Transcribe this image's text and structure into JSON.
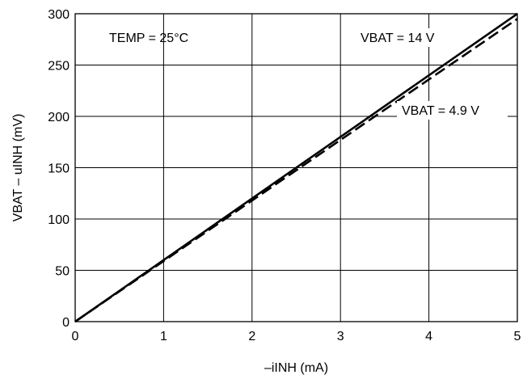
{
  "chart_data": {
    "type": "line",
    "title": "",
    "xlabel": "–iINH (mA)",
    "ylabel": "VBAT – uINH (mV)",
    "xlim": [
      0,
      5
    ],
    "ylim": [
      0,
      300
    ],
    "x_ticks": [
      0,
      1,
      2,
      3,
      4,
      5
    ],
    "y_ticks": [
      0,
      50,
      100,
      150,
      200,
      250,
      300
    ],
    "x_tick_labels": [
      "0",
      "1",
      "2",
      "3",
      "4",
      "5"
    ],
    "y_tick_labels": [
      "0",
      "50",
      "100",
      "150",
      "200",
      "250",
      "300"
    ],
    "grid": true,
    "legend": "none",
    "series": [
      {
        "name": "VBAT = 14 V",
        "style": "solid",
        "color": "#000000",
        "x": [
          0,
          5
        ],
        "y": [
          0,
          300
        ]
      },
      {
        "name": "VBAT = 4.9 V",
        "style": "dashed",
        "color": "#000000",
        "x": [
          0,
          5
        ],
        "y": [
          0,
          295
        ]
      }
    ],
    "annotations": [
      {
        "text": "TEMP = 25°C"
      },
      {
        "text": "VBAT = 14 V"
      },
      {
        "text": "VBAT = 4.9 V"
      }
    ]
  }
}
